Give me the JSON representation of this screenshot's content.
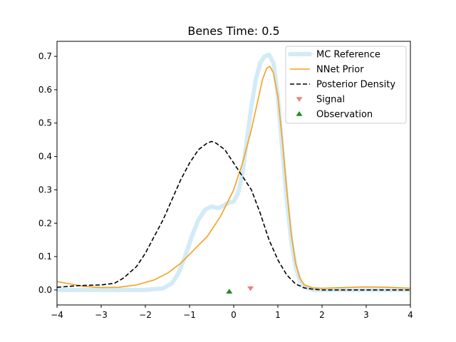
{
  "chart_data": {
    "type": "line",
    "title": "Benes Time: 0.5",
    "xlabel": "",
    "ylabel": "",
    "xlim": [
      -4,
      4
    ],
    "ylim": [
      -0.045,
      0.745
    ],
    "x_ticks": [
      -4,
      -3,
      -2,
      -1,
      0,
      1,
      2,
      3,
      4
    ],
    "x_tick_labels": [
      "−4",
      "−3",
      "−2",
      "−1",
      "0",
      "1",
      "2",
      "3",
      "4"
    ],
    "y_ticks": [
      0.0,
      0.1,
      0.2,
      0.3,
      0.4,
      0.5,
      0.6,
      0.7
    ],
    "y_tick_labels": [
      "0.0",
      "0.1",
      "0.2",
      "0.3",
      "0.4",
      "0.5",
      "0.6",
      "0.7"
    ],
    "grid": false,
    "legend_position": "top-right",
    "series": [
      {
        "name": "MC Reference",
        "style": "thick-line",
        "color": "#d3ebf6",
        "points": [
          [
            -4,
            0.0
          ],
          [
            -2.5,
            0.0
          ],
          [
            -2.0,
            0.0
          ],
          [
            -1.6,
            0.005
          ],
          [
            -1.4,
            0.02
          ],
          [
            -1.25,
            0.05
          ],
          [
            -1.1,
            0.1
          ],
          [
            -0.95,
            0.16
          ],
          [
            -0.8,
            0.21
          ],
          [
            -0.65,
            0.24
          ],
          [
            -0.5,
            0.25
          ],
          [
            -0.35,
            0.245
          ],
          [
            -0.2,
            0.255
          ],
          [
            -0.1,
            0.262
          ],
          [
            0.0,
            0.265
          ],
          [
            0.1,
            0.29
          ],
          [
            0.2,
            0.35
          ],
          [
            0.3,
            0.45
          ],
          [
            0.4,
            0.55
          ],
          [
            0.5,
            0.63
          ],
          [
            0.6,
            0.68
          ],
          [
            0.7,
            0.7
          ],
          [
            0.8,
            0.705
          ],
          [
            0.9,
            0.68
          ],
          [
            1.0,
            0.58
          ],
          [
            1.1,
            0.42
          ],
          [
            1.2,
            0.27
          ],
          [
            1.3,
            0.15
          ],
          [
            1.4,
            0.07
          ],
          [
            1.5,
            0.025
          ],
          [
            1.6,
            0.008
          ],
          [
            1.8,
            0.0
          ],
          [
            4,
            0.0
          ]
        ]
      },
      {
        "name": "NNet Prior",
        "style": "solid",
        "color": "#f5a01a",
        "points": [
          [
            -4,
            0.025
          ],
          [
            -3.7,
            0.018
          ],
          [
            -3.4,
            0.011
          ],
          [
            -3.0,
            0.007
          ],
          [
            -2.6,
            0.008
          ],
          [
            -2.2,
            0.015
          ],
          [
            -1.8,
            0.03
          ],
          [
            -1.5,
            0.05
          ],
          [
            -1.2,
            0.08
          ],
          [
            -0.9,
            0.12
          ],
          [
            -0.6,
            0.16
          ],
          [
            -0.3,
            0.22
          ],
          [
            0.0,
            0.3
          ],
          [
            0.2,
            0.38
          ],
          [
            0.4,
            0.48
          ],
          [
            0.55,
            0.57
          ],
          [
            0.65,
            0.63
          ],
          [
            0.75,
            0.665
          ],
          [
            0.82,
            0.67
          ],
          [
            0.9,
            0.65
          ],
          [
            1.0,
            0.58
          ],
          [
            1.1,
            0.45
          ],
          [
            1.2,
            0.3
          ],
          [
            1.3,
            0.17
          ],
          [
            1.4,
            0.08
          ],
          [
            1.5,
            0.035
          ],
          [
            1.6,
            0.015
          ],
          [
            1.8,
            0.006
          ],
          [
            2.0,
            0.005
          ],
          [
            2.5,
            0.007
          ],
          [
            3.0,
            0.009
          ],
          [
            3.5,
            0.008
          ],
          [
            4.0,
            0.005
          ]
        ]
      },
      {
        "name": "Posterior Density",
        "style": "dashed",
        "color": "#000000",
        "points": [
          [
            -4,
            0.008
          ],
          [
            -3.5,
            0.013
          ],
          [
            -3.0,
            0.015
          ],
          [
            -2.7,
            0.02
          ],
          [
            -2.5,
            0.035
          ],
          [
            -2.2,
            0.07
          ],
          [
            -2.0,
            0.11
          ],
          [
            -1.8,
            0.16
          ],
          [
            -1.6,
            0.21
          ],
          [
            -1.4,
            0.27
          ],
          [
            -1.2,
            0.33
          ],
          [
            -1.0,
            0.38
          ],
          [
            -0.8,
            0.42
          ],
          [
            -0.6,
            0.44
          ],
          [
            -0.5,
            0.445
          ],
          [
            -0.4,
            0.44
          ],
          [
            -0.2,
            0.42
          ],
          [
            0.0,
            0.38
          ],
          [
            0.2,
            0.34
          ],
          [
            0.4,
            0.3
          ],
          [
            0.6,
            0.23
          ],
          [
            0.8,
            0.15
          ],
          [
            1.0,
            0.09
          ],
          [
            1.2,
            0.045
          ],
          [
            1.4,
            0.018
          ],
          [
            1.6,
            0.006
          ],
          [
            1.8,
            0.002
          ],
          [
            2.0,
            0.0
          ],
          [
            4.0,
            0.0
          ]
        ]
      },
      {
        "name": "Signal",
        "style": "marker-down-triangle",
        "color": "#f08080",
        "points": [
          [
            0.38,
            0.005
          ]
        ]
      },
      {
        "name": "Observation",
        "style": "marker-up-triangle",
        "color": "#228b22",
        "points": [
          [
            -0.1,
            -0.005
          ]
        ]
      }
    ]
  }
}
